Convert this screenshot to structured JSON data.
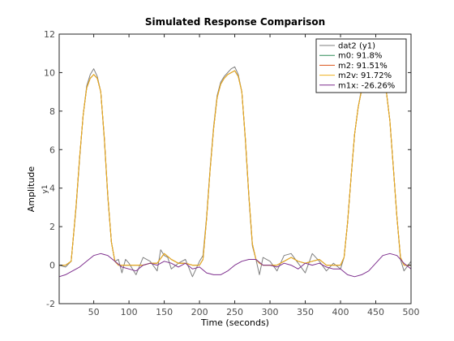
{
  "chart_data": {
    "type": "line",
    "title": "Simulated Response Comparison",
    "xlabel": "Time (seconds)",
    "ylabel": "Amplitude",
    "y_channel_label": "y1",
    "xlim": [
      1,
      500
    ],
    "ylim": [
      -2,
      12
    ],
    "xticks": [
      50,
      100,
      150,
      200,
      250,
      300,
      350,
      400,
      450,
      500
    ],
    "yticks": [
      -2,
      0,
      2,
      4,
      6,
      8,
      10,
      12
    ],
    "grid": false,
    "legend_position": "top-right",
    "series": [
      {
        "name": "dat2 (y1)",
        "color": "#7f7f7f",
        "x": [
          1,
          10,
          18,
          20,
          25,
          30,
          35,
          40,
          45,
          50,
          55,
          60,
          65,
          70,
          75,
          80,
          85,
          90,
          95,
          100,
          110,
          120,
          130,
          140,
          145,
          150,
          155,
          160,
          170,
          180,
          190,
          200,
          205,
          210,
          215,
          220,
          225,
          230,
          235,
          240,
          245,
          250,
          255,
          260,
          265,
          270,
          275,
          280,
          285,
          290,
          300,
          310,
          320,
          330,
          340,
          350,
          360,
          370,
          380,
          390,
          400,
          405,
          410,
          415,
          420,
          425,
          430,
          435,
          440,
          445,
          450,
          455,
          460,
          465,
          470,
          475,
          480,
          485,
          490,
          500
        ],
        "y": [
          0,
          -0.1,
          0.2,
          1.0,
          3.0,
          5.5,
          7.8,
          9.3,
          9.9,
          10.2,
          9.8,
          9.0,
          6.5,
          3.5,
          1.2,
          0.2,
          0.3,
          -0.4,
          0.3,
          0.1,
          -0.5,
          0.4,
          0.2,
          -0.3,
          0.8,
          0.5,
          0.4,
          -0.2,
          0.1,
          0.3,
          -0.6,
          0.2,
          0.5,
          2.5,
          5.0,
          7.2,
          8.8,
          9.5,
          9.8,
          10.0,
          10.2,
          10.3,
          9.9,
          9.0,
          6.5,
          3.5,
          1.0,
          0.3,
          -0.5,
          0.4,
          0.2,
          -0.3,
          0.5,
          0.6,
          0.1,
          -0.4,
          0.6,
          0.2,
          -0.3,
          0.1,
          -0.2,
          0.4,
          2.2,
          4.6,
          6.8,
          8.2,
          9.2,
          9.8,
          10.0,
          9.9,
          10.1,
          9.6,
          9.3,
          9.0,
          7.5,
          5.0,
          2.5,
          0.3,
          -0.3,
          0.2
        ]
      },
      {
        "name": "m0: 91.8%",
        "color": "#2e8b57",
        "x": [
          1,
          10,
          18,
          20,
          25,
          30,
          35,
          40,
          45,
          50,
          55,
          60,
          65,
          70,
          75,
          80,
          85,
          90,
          100,
          110,
          120,
          130,
          140,
          150,
          160,
          170,
          180,
          190,
          200,
          205,
          210,
          215,
          220,
          225,
          230,
          235,
          240,
          245,
          250,
          255,
          260,
          265,
          270,
          275,
          280,
          285,
          290,
          300,
          310,
          320,
          330,
          340,
          350,
          360,
          370,
          380,
          390,
          400,
          405,
          410,
          415,
          420,
          425,
          430,
          435,
          440,
          445,
          450,
          455,
          460,
          465,
          470,
          475,
          480,
          485,
          490,
          500
        ],
        "y": [
          0,
          0,
          0.2,
          1.0,
          3.1,
          5.6,
          7.8,
          9.2,
          9.7,
          9.9,
          9.7,
          9.0,
          6.6,
          3.6,
          1.2,
          0.2,
          0,
          0,
          0,
          0,
          0,
          0.1,
          0.1,
          0.6,
          0.3,
          0.1,
          0.1,
          0,
          0,
          0.3,
          2.4,
          4.9,
          7.1,
          8.7,
          9.4,
          9.7,
          9.9,
          10.0,
          10.1,
          9.8,
          9.0,
          6.6,
          3.6,
          1.1,
          0.3,
          0.1,
          0,
          0,
          0,
          0.2,
          0.4,
          0.2,
          0.1,
          0.2,
          0.3,
          0,
          0,
          0,
          0.4,
          2.2,
          4.6,
          6.8,
          8.2,
          9.1,
          9.7,
          9.9,
          9.9,
          10.0,
          9.6,
          9.3,
          9.0,
          7.5,
          5.0,
          2.5,
          0.4,
          0,
          0
        ]
      },
      {
        "name": "m2: 91.51%",
        "color": "#d95319",
        "x": [
          1,
          10,
          18,
          20,
          25,
          30,
          35,
          40,
          45,
          50,
          55,
          60,
          65,
          70,
          75,
          80,
          85,
          90,
          100,
          110,
          120,
          130,
          140,
          150,
          160,
          170,
          180,
          190,
          200,
          205,
          210,
          215,
          220,
          225,
          230,
          235,
          240,
          245,
          250,
          255,
          260,
          265,
          270,
          275,
          280,
          285,
          290,
          300,
          310,
          320,
          330,
          340,
          350,
          360,
          370,
          380,
          390,
          400,
          405,
          410,
          415,
          420,
          425,
          430,
          435,
          440,
          445,
          450,
          455,
          460,
          465,
          470,
          475,
          480,
          485,
          490,
          500
        ],
        "y": [
          0,
          0,
          0.2,
          1.0,
          3.1,
          5.6,
          7.8,
          9.2,
          9.7,
          9.9,
          9.7,
          9.0,
          6.6,
          3.6,
          1.2,
          0.2,
          0,
          0,
          0,
          0,
          0,
          0.1,
          0.1,
          0.6,
          0.3,
          0.1,
          0.1,
          0,
          0,
          0.3,
          2.4,
          4.9,
          7.1,
          8.7,
          9.4,
          9.7,
          9.9,
          10.0,
          10.1,
          9.8,
          9.0,
          6.6,
          3.6,
          1.1,
          0.3,
          0.1,
          0,
          0,
          0,
          0.2,
          0.4,
          0.2,
          0.1,
          0.2,
          0.3,
          0,
          0,
          0,
          0.4,
          2.2,
          4.6,
          6.8,
          8.2,
          9.1,
          9.7,
          9.9,
          9.9,
          10.0,
          9.6,
          9.3,
          9.0,
          7.5,
          5.0,
          2.5,
          0.4,
          0,
          0
        ]
      },
      {
        "name": "m2v: 91.72%",
        "color": "#edb120",
        "x": [
          1,
          10,
          18,
          20,
          25,
          30,
          35,
          40,
          45,
          50,
          55,
          60,
          65,
          70,
          75,
          80,
          85,
          90,
          100,
          110,
          120,
          130,
          140,
          150,
          160,
          170,
          180,
          190,
          200,
          205,
          210,
          215,
          220,
          225,
          230,
          235,
          240,
          245,
          250,
          255,
          260,
          265,
          270,
          275,
          280,
          285,
          290,
          300,
          310,
          320,
          330,
          340,
          350,
          360,
          370,
          380,
          390,
          400,
          405,
          410,
          415,
          420,
          425,
          430,
          435,
          440,
          445,
          450,
          455,
          460,
          465,
          470,
          475,
          480,
          485,
          490,
          500
        ],
        "y": [
          0,
          0,
          0.2,
          1.0,
          3.1,
          5.6,
          7.8,
          9.2,
          9.7,
          9.9,
          9.7,
          9.0,
          6.6,
          3.6,
          1.2,
          0.2,
          0,
          0,
          0,
          0,
          0,
          0.1,
          0.1,
          0.6,
          0.3,
          0.1,
          0.1,
          0,
          0,
          0.3,
          2.4,
          4.9,
          7.1,
          8.7,
          9.4,
          9.7,
          9.9,
          10.0,
          10.1,
          9.8,
          9.0,
          6.6,
          3.6,
          1.1,
          0.3,
          0.1,
          0,
          0,
          0,
          0.2,
          0.4,
          0.2,
          0.1,
          0.2,
          0.3,
          0,
          0,
          0,
          0.4,
          2.2,
          4.6,
          6.8,
          8.2,
          9.1,
          9.7,
          9.9,
          9.9,
          10.0,
          9.6,
          9.3,
          9.0,
          7.5,
          5.0,
          2.5,
          0.4,
          0,
          0
        ]
      },
      {
        "name": "m1x: -26.26%",
        "color": "#7e2f8e",
        "x": [
          1,
          10,
          20,
          30,
          40,
          50,
          60,
          70,
          80,
          90,
          100,
          110,
          120,
          130,
          140,
          150,
          160,
          170,
          180,
          190,
          200,
          210,
          220,
          230,
          240,
          250,
          260,
          270,
          280,
          290,
          300,
          310,
          320,
          330,
          340,
          350,
          360,
          370,
          380,
          390,
          400,
          410,
          420,
          430,
          440,
          450,
          460,
          470,
          480,
          490,
          500
        ],
        "y": [
          -0.6,
          -0.5,
          -0.3,
          -0.1,
          0.2,
          0.5,
          0.6,
          0.5,
          0.2,
          -0.1,
          -0.2,
          -0.3,
          0,
          0.1,
          0,
          0.2,
          0.1,
          -0.1,
          0.1,
          -0.2,
          -0.1,
          -0.4,
          -0.5,
          -0.5,
          -0.3,
          0,
          0.2,
          0.3,
          0.3,
          0,
          0,
          -0.1,
          0.1,
          0,
          -0.2,
          0.1,
          0,
          0.1,
          -0.1,
          -0.2,
          -0.2,
          -0.5,
          -0.6,
          -0.5,
          -0.3,
          0.1,
          0.5,
          0.6,
          0.5,
          0.1,
          -0.2
        ]
      }
    ]
  }
}
